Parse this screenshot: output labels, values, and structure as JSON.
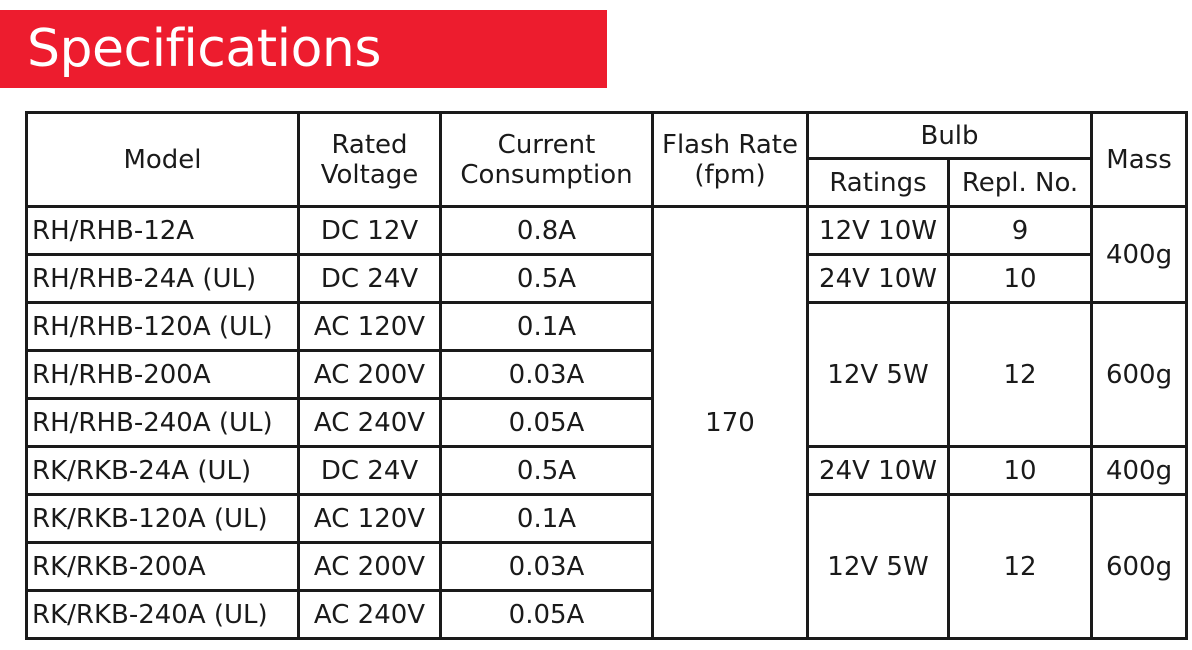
{
  "title": "Specifications",
  "colors": {
    "banner": "#ed1c2e",
    "banner_text": "#ffffff",
    "border": "#1a1a1a"
  },
  "headers": {
    "model": "Model",
    "rated_voltage": [
      "Rated",
      "Voltage"
    ],
    "current_consumption": [
      "Current",
      "Consumption"
    ],
    "flash_rate": [
      "Flash Rate",
      "(fpm)"
    ],
    "bulb": "Bulb",
    "ratings": "Ratings",
    "repl_no": "Repl. No.",
    "mass": "Mass"
  },
  "rows": [
    {
      "model": "RH/RHB-12A",
      "voltage": "DC 12V",
      "current": "0.8A"
    },
    {
      "model": "RH/RHB-24A (UL)",
      "voltage": "DC 24V",
      "current": "0.5A"
    },
    {
      "model": "RH/RHB-120A (UL)",
      "voltage": "AC 120V",
      "current": "0.1A"
    },
    {
      "model": "RH/RHB-200A",
      "voltage": "AC 200V",
      "current": "0.03A"
    },
    {
      "model": "RH/RHB-240A (UL)",
      "voltage": "AC 240V",
      "current": "0.05A"
    },
    {
      "model": "RK/RKB-24A (UL)",
      "voltage": "DC 24V",
      "current": "0.5A"
    },
    {
      "model": "RK/RKB-120A (UL)",
      "voltage": "AC 120V",
      "current": "0.1A"
    },
    {
      "model": "RK/RKB-200A",
      "voltage": "AC 200V",
      "current": "0.03A"
    },
    {
      "model": "RK/RKB-240A (UL)",
      "voltage": "AC 240V",
      "current": "0.05A"
    }
  ],
  "flash_rate": "170",
  "bulb_groups": [
    {
      "ratings": "12V 10W",
      "repl_no": "9"
    },
    {
      "ratings": "24V 10W",
      "repl_no": "10"
    },
    {
      "ratings": "12V 5W",
      "repl_no": "12"
    },
    {
      "ratings": "24V 10W",
      "repl_no": "10"
    },
    {
      "ratings": "12V 5W",
      "repl_no": "12"
    }
  ],
  "mass_groups": [
    "400g",
    "600g",
    "400g",
    "600g"
  ]
}
